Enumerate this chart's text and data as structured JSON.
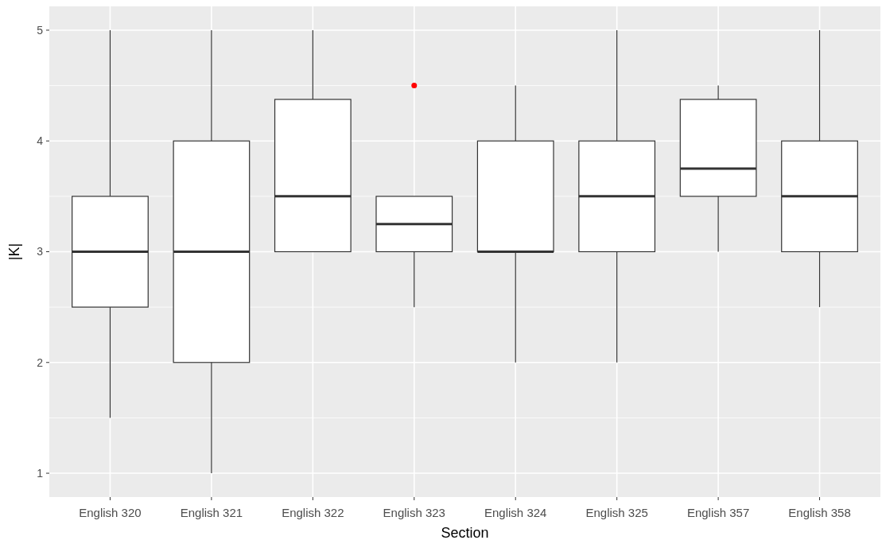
{
  "chart_data": {
    "type": "box",
    "xlabel": "Section",
    "ylabel": "|K|",
    "categories": [
      "English 320",
      "English 321",
      "English 322",
      "English 323",
      "English 324",
      "English 325",
      "English 357",
      "English 358"
    ],
    "boxes": [
      {
        "low": 1.5,
        "q1": 2.5,
        "median": 3,
        "q3": 3.5,
        "high": 5
      },
      {
        "low": 1,
        "q1": 2,
        "median": 3,
        "q3": 4,
        "high": 5
      },
      {
        "low": 3,
        "q1": 3,
        "median": 3.5,
        "q3": 4.375,
        "high": 5
      },
      {
        "low": 2.5,
        "q1": 3,
        "median": 3.25,
        "q3": 3.5,
        "high": 3.5,
        "outliers": [
          4.5
        ]
      },
      {
        "low": 2,
        "q1": 3,
        "median": 3,
        "q3": 4,
        "high": 4.5
      },
      {
        "low": 2,
        "q1": 3,
        "median": 3.5,
        "q3": 4,
        "high": 5
      },
      {
        "low": 3,
        "q1": 3.5,
        "median": 3.75,
        "q3": 4.375,
        "high": 4.5
      },
      {
        "low": 2.5,
        "q1": 3,
        "median": 3.5,
        "q3": 4,
        "high": 5
      }
    ],
    "ylim": [
      0.785,
      5.215
    ],
    "yticks": [
      1,
      2,
      3,
      4,
      5
    ],
    "grid": true
  }
}
